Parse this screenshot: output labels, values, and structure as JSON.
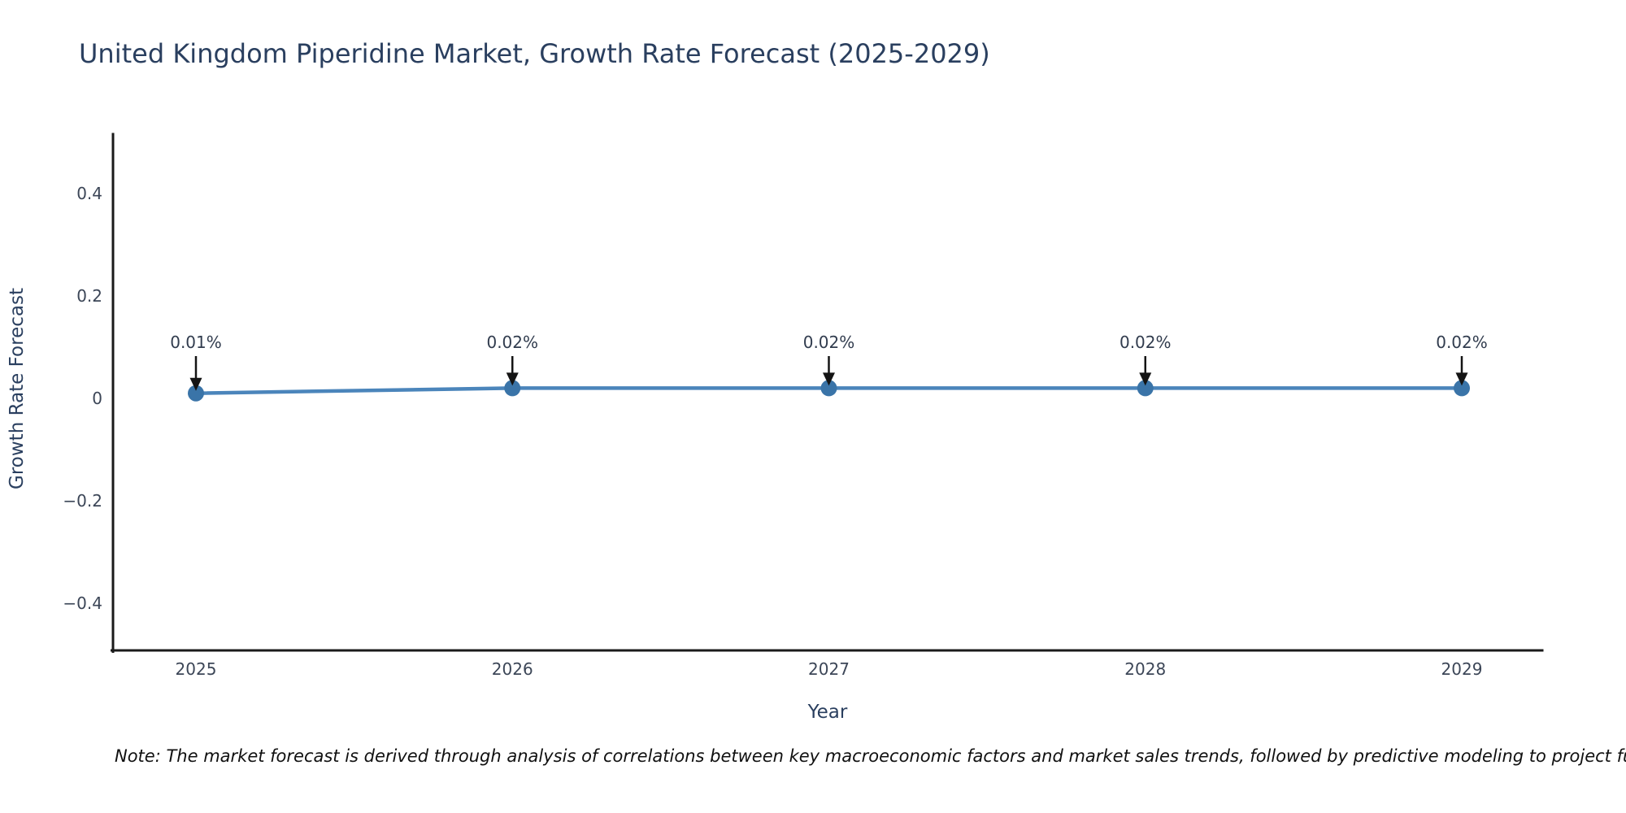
{
  "note": "Note: The market forecast is derived through analysis of correlations between key macroeconomic factors and market sales trends, followed by predictive modeling to project future sales",
  "chart_data": {
    "type": "line",
    "title": "United Kingdom Piperidine Market, Growth Rate Forecast (2025-2029)",
    "xlabel": "Year",
    "ylabel": "Growth Rate Forecast",
    "x": [
      2025,
      2026,
      2027,
      2028,
      2029
    ],
    "values": [
      0.01,
      0.02,
      0.02,
      0.02,
      0.02
    ],
    "point_labels": [
      "0.01%",
      "0.02%",
      "0.02%",
      "0.02%",
      "0.02%"
    ],
    "yticks": [
      0.4,
      0.2,
      0,
      -0.2,
      -0.4
    ],
    "ytick_labels": [
      "0.4",
      "0.2",
      "0",
      "−0.2",
      "−0.4"
    ],
    "xlim": [
      2024.73,
      2029.25
    ],
    "ylim": [
      -0.49,
      0.55
    ],
    "grid": false,
    "legend": "none",
    "line_color": "#4b85bb",
    "marker_color": "#3a74a8",
    "arrow_color": "#141414",
    "text_color": "#2a3f5f"
  }
}
